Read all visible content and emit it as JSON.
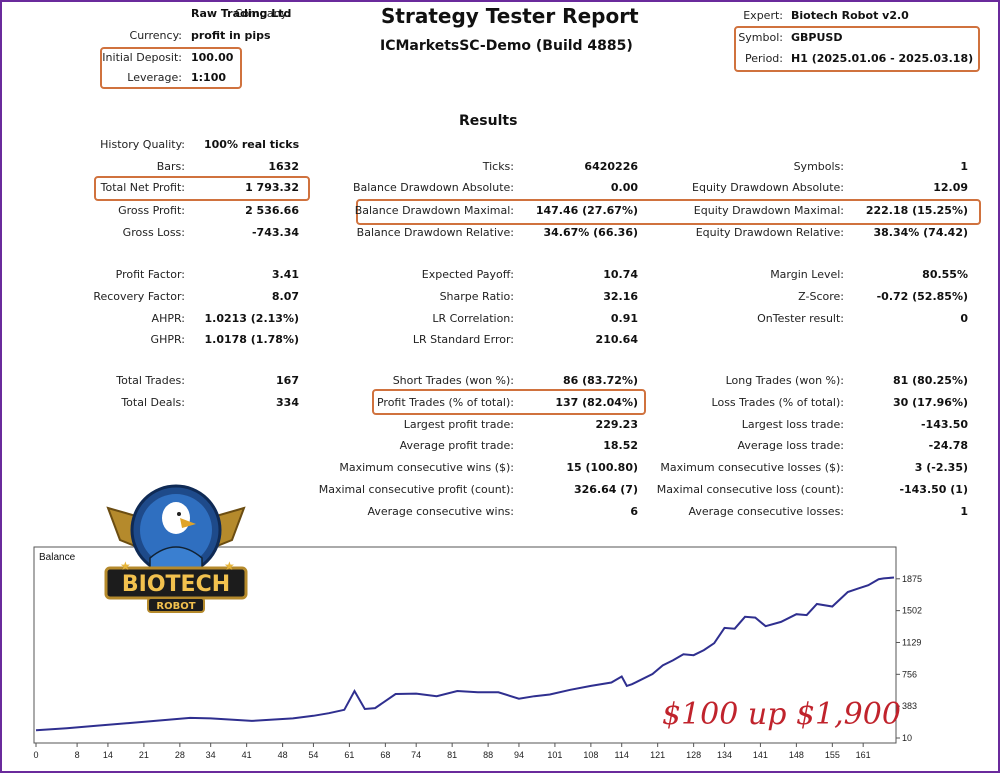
{
  "header": {
    "title": "Strategy Tester Report",
    "subtitle": "ICMarketsSC-Demo (Build 4885)",
    "company_label": "Company:",
    "company": "Raw Trading Ltd",
    "currency_label": "Currency:",
    "currency": "profit in pips",
    "deposit_label": "Initial Deposit:",
    "deposit": "100.00",
    "leverage_label": "Leverage:",
    "leverage": "1:100",
    "expert_label": "Expert:",
    "expert": "Biotech Robot v2.0",
    "symbol_label": "Symbol:",
    "symbol": "GBPUSD",
    "period_label": "Period:",
    "period": "H1 (2025.01.06 - 2025.03.18)"
  },
  "results": {
    "heading": "Results",
    "col1": [
      {
        "label": "History Quality:",
        "value": "100% real ticks"
      },
      {
        "label": "Bars:",
        "value": "1632"
      },
      {
        "label": "Total Net Profit:",
        "value": "1 793.32"
      },
      {
        "label": "Gross Profit:",
        "value": "2 536.66"
      },
      {
        "label": "Gross Loss:",
        "value": "-743.34"
      },
      {
        "label": "Profit Factor:",
        "value": "3.41"
      },
      {
        "label": "Recovery Factor:",
        "value": "8.07"
      },
      {
        "label": "AHPR:",
        "value": "1.0213 (2.13%)"
      },
      {
        "label": "GHPR:",
        "value": "1.0178 (1.78%)"
      },
      {
        "label": "Total Trades:",
        "value": "167"
      },
      {
        "label": "Total Deals:",
        "value": "334"
      }
    ],
    "col2": [
      {
        "label": "Ticks:",
        "value": "6420226"
      },
      {
        "label": "Balance Drawdown Absolute:",
        "value": "0.00"
      },
      {
        "label": "Balance Drawdown Maximal:",
        "value": "147.46 (27.67%)"
      },
      {
        "label": "Balance Drawdown Relative:",
        "value": "34.67% (66.36)"
      },
      {
        "label": "Expected Payoff:",
        "value": "10.74"
      },
      {
        "label": "Sharpe Ratio:",
        "value": "32.16"
      },
      {
        "label": "LR Correlation:",
        "value": "0.91"
      },
      {
        "label": "LR Standard Error:",
        "value": "210.64"
      },
      {
        "label": "Short Trades (won %):",
        "value": "86 (83.72%)"
      },
      {
        "label": "Profit Trades (% of total):",
        "value": "137 (82.04%)"
      },
      {
        "label": "Largest profit trade:",
        "value": "229.23"
      },
      {
        "label": "Average profit trade:",
        "value": "18.52"
      },
      {
        "label": "Maximum consecutive wins ($):",
        "value": "15 (100.80)"
      },
      {
        "label": "Maximal consecutive profit (count):",
        "value": "326.64 (7)"
      },
      {
        "label": "Average consecutive wins:",
        "value": "6"
      }
    ],
    "col3": [
      {
        "label": "Symbols:",
        "value": "1"
      },
      {
        "label": "Equity Drawdown Absolute:",
        "value": "12.09"
      },
      {
        "label": "Equity Drawdown Maximal:",
        "value": "222.18 (15.25%)"
      },
      {
        "label": "Equity Drawdown Relative:",
        "value": "38.34% (74.42)"
      },
      {
        "label": "Margin Level:",
        "value": "80.55%"
      },
      {
        "label": "Z-Score:",
        "value": "-0.72 (52.85%)"
      },
      {
        "label": "OnTester result:",
        "value": "0"
      },
      {
        "label": "Long Trades (won %):",
        "value": "81 (80.25%)"
      },
      {
        "label": "Loss Trades (% of total):",
        "value": "30 (17.96%)"
      },
      {
        "label": "Largest loss trade:",
        "value": "-143.50"
      },
      {
        "label": "Average loss trade:",
        "value": "-24.78"
      },
      {
        "label": "Maximum consecutive losses ($):",
        "value": "3 (-2.35)"
      },
      {
        "label": "Maximal consecutive loss (count):",
        "value": "-143.50 (1)"
      },
      {
        "label": "Average consecutive losses:",
        "value": "1"
      }
    ]
  },
  "logo": {
    "line1": "BIOTECH",
    "line2": "ROBOT"
  },
  "overlay_text": "$100 up $1,900",
  "colors": {
    "accent_box": "#d0723e",
    "frame": "#6a2a9c",
    "balance_line": "#2f2f8f",
    "overlay_text": "#c0232c"
  },
  "chart_data": {
    "type": "line",
    "title": "Balance",
    "xlabel": "",
    "ylabel": "",
    "x_ticks": [
      "0",
      "8",
      "14",
      "21",
      "28",
      "34",
      "41",
      "48",
      "54",
      "61",
      "68",
      "74",
      "81",
      "88",
      "94",
      "101",
      "108",
      "114",
      "121",
      "128",
      "134",
      "141",
      "148",
      "155",
      "161"
    ],
    "y_ticks": [
      "10",
      "383",
      "756",
      "1129",
      "1502",
      "1875"
    ],
    "ylim": [
      10,
      2060
    ],
    "xlim": [
      0,
      167
    ],
    "grid": false,
    "series": [
      {
        "x": [
          0,
          6,
          12,
          18,
          24,
          30,
          34,
          38,
          42,
          46,
          50,
          54,
          57,
          60,
          62,
          64,
          66,
          70,
          74,
          78,
          82,
          86,
          90,
          94,
          97,
          100,
          104,
          108,
          112,
          114,
          115,
          116,
          117,
          120,
          122,
          124,
          126,
          128,
          130,
          132,
          134,
          136,
          138,
          140,
          142,
          145,
          148,
          150,
          152,
          155,
          158,
          160,
          162,
          164,
          165,
          167
        ],
        "y": [
          100,
          125,
          155,
          185,
          215,
          245,
          240,
          225,
          210,
          225,
          240,
          270,
          300,
          340,
          560,
          350,
          360,
          525,
          530,
          500,
          560,
          545,
          545,
          470,
          500,
          520,
          575,
          620,
          660,
          730,
          620,
          640,
          670,
          760,
          860,
          920,
          990,
          980,
          1040,
          1120,
          1300,
          1290,
          1430,
          1420,
          1320,
          1370,
          1460,
          1450,
          1580,
          1550,
          1720,
          1760,
          1800,
          1870,
          1880,
          1890
        ]
      }
    ]
  }
}
